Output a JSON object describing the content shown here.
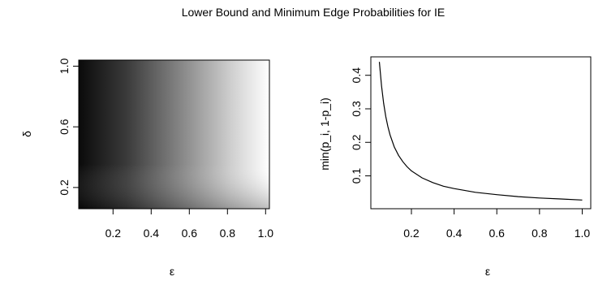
{
  "title": "Lower Bound and Minimum Edge Probabilities for IE",
  "chart_data": [
    {
      "type": "heatmap",
      "xlabel": "ε",
      "ylabel": "δ",
      "xlim": [
        0.02,
        1.02
      ],
      "ylim": [
        0.06,
        1.04
      ],
      "xticks": [
        0.2,
        0.4,
        0.6,
        0.8,
        1.0
      ],
      "xtick_labels": [
        "0.2",
        "0.4",
        "0.6",
        "0.8",
        "1.0"
      ],
      "yticks": [
        0.2,
        0.6,
        1.0
      ],
      "ytick_labels": [
        "0.2",
        "0.6",
        "1.0"
      ],
      "x_range": [
        0.05,
        1.0
      ],
      "y_range": [
        0.1,
        1.0
      ],
      "colormap": "grayscale (black = high, white = low)",
      "description_values": {
        "intensity_at": [
          {
            "x": 0.05,
            "y": 1.0,
            "value": "dark"
          },
          {
            "x": 1.0,
            "y": 1.0,
            "value": "white"
          },
          {
            "x": 1.0,
            "y": 0.1,
            "value": "light gray"
          }
        ]
      }
    },
    {
      "type": "line",
      "xlabel": "ε",
      "ylabel": "min(p_i, 1-p_i)",
      "xlim": [
        0.01,
        1.04
      ],
      "ylim": [
        0.002,
        0.455
      ],
      "xticks": [
        0.2,
        0.4,
        0.6,
        0.8,
        1.0
      ],
      "xtick_labels": [
        "0.2",
        "0.4",
        "0.6",
        "0.8",
        "1.0"
      ],
      "yticks": [
        0.1,
        0.2,
        0.3,
        0.4
      ],
      "ytick_labels": [
        "0.1",
        "0.2",
        "0.3",
        "0.4"
      ],
      "series": [
        {
          "x": [
            0.05,
            0.06,
            0.07,
            0.08,
            0.09,
            0.1,
            0.12,
            0.14,
            0.16,
            0.18,
            0.2,
            0.25,
            0.3,
            0.35,
            0.4,
            0.5,
            0.6,
            0.7,
            0.8,
            0.9,
            1.0
          ],
          "y": [
            0.44,
            0.368,
            0.316,
            0.277,
            0.247,
            0.222,
            0.186,
            0.161,
            0.142,
            0.127,
            0.115,
            0.094,
            0.08,
            0.069,
            0.062,
            0.051,
            0.044,
            0.038,
            0.034,
            0.031,
            0.028
          ]
        }
      ]
    }
  ]
}
